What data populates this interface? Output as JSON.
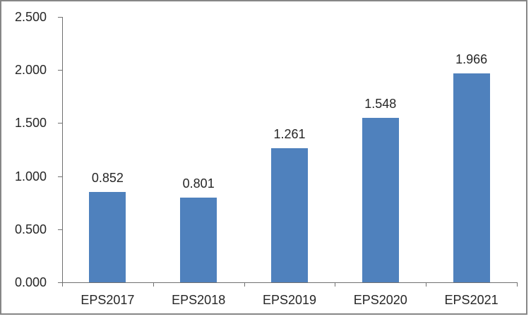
{
  "chart_data": {
    "type": "bar",
    "title": "",
    "xlabel": "",
    "ylabel": "",
    "categories": [
      "EPS2017",
      "EPS2018",
      "EPS2019",
      "EPS2020",
      "EPS2021"
    ],
    "values": [
      0.852,
      0.801,
      1.261,
      1.548,
      1.966
    ],
    "data_labels": [
      "0.852",
      "0.801",
      "1.261",
      "1.548",
      "1.966"
    ],
    "ylim": [
      0.0,
      2.5
    ],
    "ytick_values": [
      0.0,
      0.5,
      1.0,
      1.5,
      2.0,
      2.5
    ],
    "ytick_labels": [
      "0.000",
      "0.500",
      "1.000",
      "1.500",
      "2.000",
      "2.500"
    ],
    "grid": "off",
    "legend": "none",
    "colors": {
      "bar": "#4F81BD",
      "axis": "#707070",
      "text": "#262626",
      "frame_border": "#868686",
      "background": "#FFFFFF"
    }
  }
}
